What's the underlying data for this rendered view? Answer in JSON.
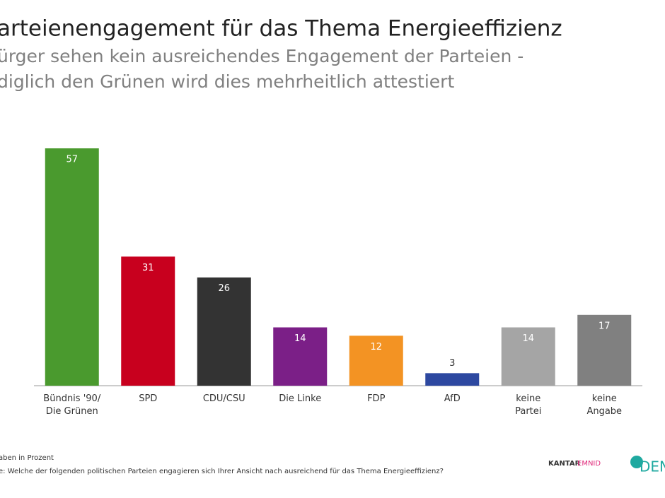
{
  "chart_data": {
    "type": "bar",
    "title": "arteienengagement für das Thema Energieeffizienz",
    "subtitle": [
      "ürger sehen kein ausreichendes Engagement der Parteien -",
      "diglich den Grünen wird dies mehrheitlich attestiert"
    ],
    "categories": [
      "Bündnis '90/\nDie Grünen",
      "SPD",
      "CDU/CSU",
      "Die Linke",
      "FDP",
      "AfD",
      "keine\nPartei",
      "keine\nAngabe"
    ],
    "values": [
      57,
      31,
      26,
      14,
      12,
      3,
      14,
      17
    ],
    "colors": [
      "#4a9a2e",
      "#c8001e",
      "#333333",
      "#7b1f87",
      "#f39323",
      "#2d48a0",
      "#a5a5a5",
      "#808080"
    ],
    "notes": [
      "aben in Prozent",
      "e: Welche der folgenden politischen Parteien engagieren sich Ihrer Ansicht nach ausreichend für das Thema Energieeffizienz?"
    ],
    "logos": [
      "KANTAR",
      "EMNID",
      "DEN"
    ]
  }
}
